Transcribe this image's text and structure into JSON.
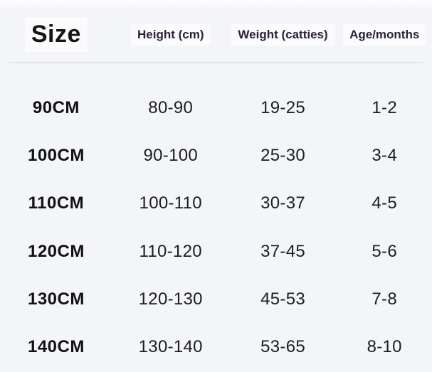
{
  "table": {
    "title": "Size",
    "columns": [
      {
        "label": "Height (cm)"
      },
      {
        "label": "Weight (catties)"
      },
      {
        "label": "Age/months"
      }
    ],
    "rows": [
      {
        "size": "90CM",
        "height": "80-90",
        "weight": "19-25",
        "age": "1-2"
      },
      {
        "size": "100CM",
        "height": "90-100",
        "weight": "25-30",
        "age": "3-4"
      },
      {
        "size": "110CM",
        "height": "100-110",
        "weight": "30-37",
        "age": "4-5"
      },
      {
        "size": "120CM",
        "height": "110-120",
        "weight": "37-45",
        "age": "5-6"
      },
      {
        "size": "130CM",
        "height": "120-130",
        "weight": "45-53",
        "age": "7-8"
      },
      {
        "size": "140CM",
        "height": "130-140",
        "weight": "53-65",
        "age": "8-10"
      }
    ]
  },
  "colors": {
    "background": "#f4f5f8",
    "divider": "#e3e3e9",
    "header_text": "#2b2139",
    "title_text": "#151515",
    "body_text": "#1d1d1f",
    "header_highlight": "#ffffff"
  },
  "chart_data": {
    "type": "table",
    "title": "Size",
    "columns": [
      "Size",
      "Height (cm)",
      "Weight (catties)",
      "Age/months"
    ],
    "rows": [
      [
        "90CM",
        "80-90",
        "19-25",
        "1-2"
      ],
      [
        "100CM",
        "90-100",
        "25-30",
        "3-4"
      ],
      [
        "110CM",
        "100-110",
        "30-37",
        "4-5"
      ],
      [
        "120CM",
        "110-120",
        "37-45",
        "5-6"
      ],
      [
        "130CM",
        "120-130",
        "45-53",
        "7-8"
      ],
      [
        "140CM",
        "130-140",
        "53-65",
        "8-10"
      ]
    ]
  }
}
